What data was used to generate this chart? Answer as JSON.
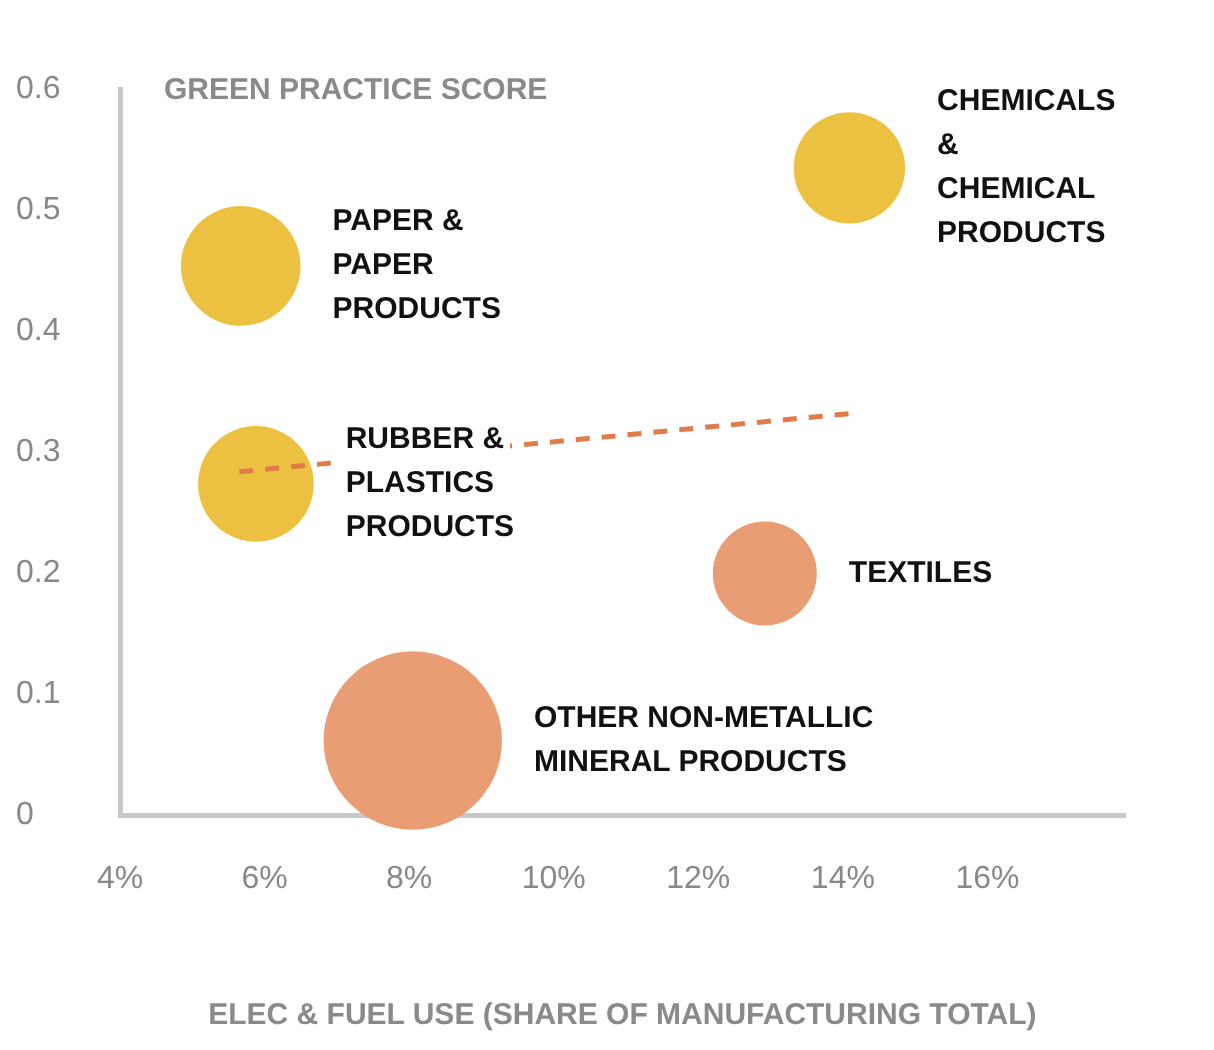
{
  "chart_data": {
    "type": "bubble",
    "xlabel": "ELEC & FUEL USE (SHARE OF MANUFACTURING TOTAL)",
    "ylabel": "GREEN PRACTICE SCORE",
    "xlim": [
      4,
      17.9
    ],
    "xticks": [
      {
        "value": 4,
        "label": "4%"
      },
      {
        "value": 6,
        "label": "6%"
      },
      {
        "value": 8,
        "label": "8%"
      },
      {
        "value": 10,
        "label": "10%"
      },
      {
        "value": 12,
        "label": "12%"
      },
      {
        "value": 14,
        "label": "14%"
      },
      {
        "value": 16,
        "label": "16%"
      }
    ],
    "ylim": [
      0,
      0.6
    ],
    "yticks": [
      0,
      0.1,
      0.2,
      0.3,
      0.4,
      0.5,
      0.6
    ],
    "grid": false,
    "legend": false,
    "series": [
      {
        "name": "PAPER &\nPAPER\nPRODUCTS",
        "color": "#ecc141",
        "x": [
          5.67
        ],
        "values": [
          0.454
        ],
        "sizes": [
          0.45
        ]
      },
      {
        "name": "RUBBER &\nPLASTICS\nPRODUCTS",
        "color": "#ecc141",
        "x": [
          5.88
        ],
        "values": [
          0.274
        ],
        "sizes": [
          0.42
        ]
      },
      {
        "name": "CHEMICALS\n&\nCHEMICAL\nPRODUCTS",
        "color": "#ecc141",
        "x": [
          14.09
        ],
        "values": [
          0.535
        ],
        "sizes": [
          0.39
        ]
      },
      {
        "name": "TEXTILES",
        "color": "#e89d74",
        "x": [
          12.92
        ],
        "values": [
          0.2
        ],
        "sizes": [
          0.34
        ]
      },
      {
        "name": "OTHER NON-METALLIC\nMINERAL PRODUCTS",
        "color": "#e89d74",
        "x": [
          8.05
        ],
        "values": [
          0.062
        ],
        "sizes": [
          1
        ]
      },
      {
        "type": "line",
        "color": "#e07b4a",
        "line_style": "dashed",
        "marker": "none",
        "x": [
          5.65,
          14.08
        ],
        "values": [
          0.284,
          0.332
        ]
      }
    ]
  }
}
